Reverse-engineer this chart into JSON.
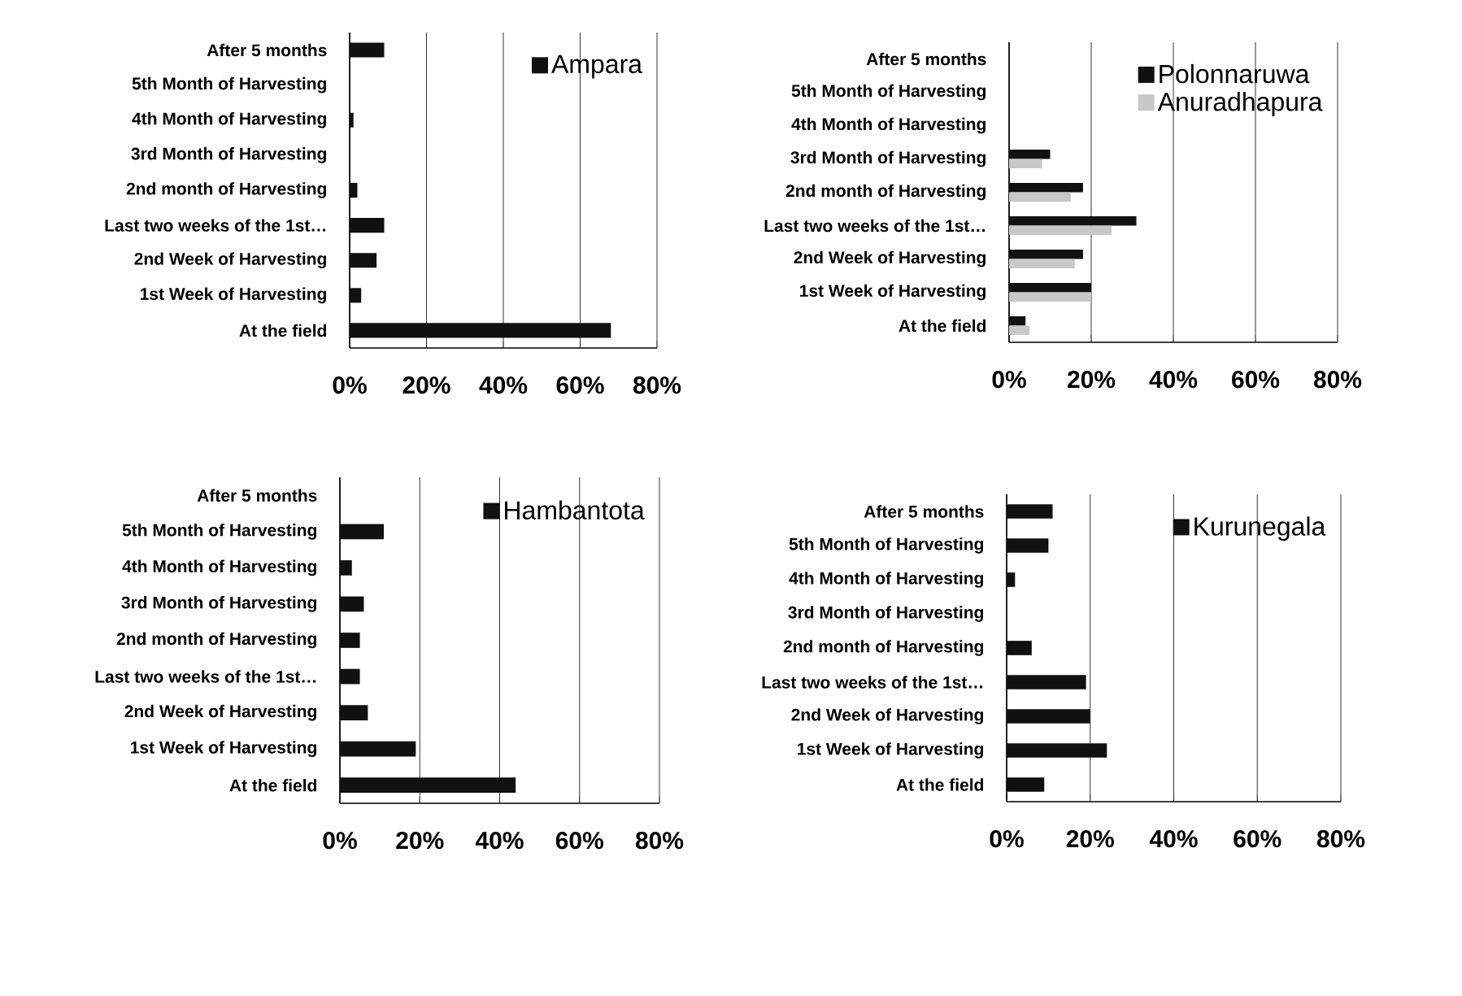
{
  "chart_data": [
    {
      "type": "bar",
      "orientation": "horizontal",
      "categories": [
        "After 5 months",
        "5th Month of Harvesting",
        "4th Month of Harvesting",
        "3rd Month of Harvesting",
        "2nd month of Harvesting",
        "Last two weeks of the 1st…",
        "2nd Week of Harvesting",
        "1st Week of Harvesting",
        "At the field"
      ],
      "series": [
        {
          "name": "Ampara",
          "color": "#111111",
          "values": [
            9,
            0,
            1,
            0,
            2,
            9,
            7,
            3,
            68
          ]
        }
      ],
      "xlim": [
        0,
        80
      ],
      "xticks": [
        {
          "value": 0,
          "label": "0%"
        },
        {
          "value": 20,
          "label": "20%"
        },
        {
          "value": 40,
          "label": "40%"
        },
        {
          "value": 60,
          "label": "60%"
        },
        {
          "value": 80,
          "label": "80%"
        }
      ],
      "grid": "x",
      "legend": "top right"
    },
    {
      "type": "bar",
      "orientation": "horizontal",
      "categories": [
        "After 5 months",
        "5th Month of Harvesting",
        "4th Month of Harvesting",
        "3rd Month of Harvesting",
        "2nd month of Harvesting",
        "Last two weeks of the 1st…",
        "2nd Week of Harvesting",
        "1st Week of Harvesting",
        "At the field"
      ],
      "series": [
        {
          "name": "Polonnaruwa",
          "color": "#111111",
          "values": [
            0,
            0,
            0,
            10,
            18,
            31,
            18,
            20,
            4
          ]
        },
        {
          "name": "Anuradhapura",
          "color": "#c8c8c8",
          "values": [
            0,
            0,
            0,
            8,
            15,
            25,
            16,
            20,
            5
          ]
        }
      ],
      "xlim": [
        0,
        80
      ],
      "xticks": [
        {
          "value": 0,
          "label": "0%"
        },
        {
          "value": 20,
          "label": "20%"
        },
        {
          "value": 40,
          "label": "40%"
        },
        {
          "value": 60,
          "label": "60%"
        },
        {
          "value": 80,
          "label": "80%"
        }
      ],
      "grid": "x",
      "legend": "top right"
    },
    {
      "type": "bar",
      "orientation": "horizontal",
      "categories": [
        "After 5 months",
        "5th Month of Harvesting",
        "4th Month of Harvesting",
        "3rd Month of Harvesting",
        "2nd month of Harvesting",
        "Last two weeks of the 1st…",
        "2nd Week of Harvesting",
        "1st Week of Harvesting",
        "At the field"
      ],
      "series": [
        {
          "name": "Hambantota",
          "color": "#111111",
          "values": [
            0,
            11,
            3,
            6,
            5,
            5,
            7,
            19,
            44
          ]
        }
      ],
      "xlim": [
        0,
        80
      ],
      "xticks": [
        {
          "value": 0,
          "label": "0%"
        },
        {
          "value": 20,
          "label": "20%"
        },
        {
          "value": 40,
          "label": "40%"
        },
        {
          "value": 60,
          "label": "60%"
        },
        {
          "value": 80,
          "label": "80%"
        }
      ],
      "grid": "x",
      "legend": "top right"
    },
    {
      "type": "bar",
      "orientation": "horizontal",
      "categories": [
        "After 5 months",
        "5th Month of Harvesting",
        "4th Month of Harvesting",
        "3rd Month of Harvesting",
        "2nd month of Harvesting",
        "Last two weeks of the 1st…",
        "2nd Week of Harvesting",
        "1st Week of Harvesting",
        "At the field"
      ],
      "series": [
        {
          "name": "Kurunegala",
          "color": "#111111",
          "values": [
            11,
            10,
            2,
            0,
            6,
            19,
            20,
            24,
            9
          ]
        }
      ],
      "xlim": [
        0,
        80
      ],
      "xticks": [
        {
          "value": 0,
          "label": "0%"
        },
        {
          "value": 20,
          "label": "20%"
        },
        {
          "value": 40,
          "label": "40%"
        },
        {
          "value": 60,
          "label": "60%"
        },
        {
          "value": 80,
          "label": "80%"
        }
      ],
      "grid": "x",
      "legend": "top right"
    }
  ]
}
